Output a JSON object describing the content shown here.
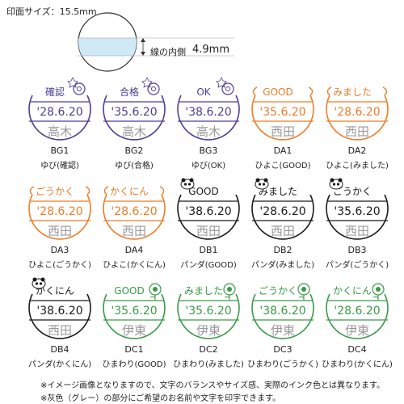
{
  "header": {
    "impression_size": "印面サイズ：15.5mm",
    "inner_label": "線の内側",
    "inner_value": "4.9mm"
  },
  "colors": {
    "purple": "#4a3f96",
    "orange": "#ef7c27",
    "black": "#1a1a1a",
    "green": "#3a9a48",
    "gray": "#9a9a9a",
    "light_blue": "#cfe9f5"
  },
  "items": [
    {
      "code": "BG1",
      "name": "ゆび(確認)",
      "top": "確認",
      "date": "'28.6.20",
      "bottom": "高木",
      "color": "purple",
      "icon": "finger-icon"
    },
    {
      "code": "BG2",
      "name": "ゆび(合格)",
      "top": "合格",
      "date": "'35.6.20",
      "bottom": "高木",
      "color": "purple",
      "icon": "finger-icon"
    },
    {
      "code": "BG3",
      "name": "ゆび(OK)",
      "top": "OK",
      "date": "'38.6.20",
      "bottom": "高木",
      "color": "purple",
      "icon": "finger-icon"
    },
    {
      "code": "DA1",
      "name": "ひよこ(GOOD)",
      "top": "GOOD",
      "date": "'35.6.20",
      "bottom": "西田",
      "color": "orange",
      "icon": "chick-icon"
    },
    {
      "code": "DA2",
      "name": "ひよこ(みました)",
      "top": "みました",
      "date": "'28.6.20",
      "bottom": "西田",
      "color": "orange",
      "icon": "chick-icon"
    },
    {
      "code": "DA3",
      "name": "ひよこ(ごうかく)",
      "top": "ごうかく",
      "date": "'28.6.20",
      "bottom": "西田",
      "color": "orange",
      "icon": "chick-icon"
    },
    {
      "code": "DA4",
      "name": "ひよこ(かくにん)",
      "top": "かくにん",
      "date": "'28.6.20",
      "bottom": "西田",
      "color": "orange",
      "icon": "chick-icon"
    },
    {
      "code": "DB1",
      "name": "パンダ(GOOD)",
      "top": "GOOD",
      "date": "'38.6.20",
      "bottom": "西田",
      "color": "black",
      "icon": "panda-icon"
    },
    {
      "code": "DB2",
      "name": "パンダ(みました)",
      "top": "みました",
      "date": "'28.6.20",
      "bottom": "西田",
      "color": "black",
      "icon": "panda-icon"
    },
    {
      "code": "DB3",
      "name": "パンダ(ごうかく)",
      "top": "ごうかく",
      "date": "'35.6.20",
      "bottom": "西田",
      "color": "black",
      "icon": "panda-icon"
    },
    {
      "code": "DB4",
      "name": "パンダ(かくにん)",
      "top": "かくにん",
      "date": "'38.6.20",
      "bottom": "西田",
      "color": "black",
      "icon": "panda-icon"
    },
    {
      "code": "DC1",
      "name": "ひまわり(GOOD)",
      "top": "GOOD",
      "date": "'35.6.20",
      "bottom": "伊東",
      "color": "green",
      "icon": "sunflower-icon"
    },
    {
      "code": "DC2",
      "name": "ひまわり(みました)",
      "top": "みました",
      "date": "'35.6.20",
      "bottom": "伊東",
      "color": "green",
      "icon": "sunflower-icon"
    },
    {
      "code": "DC3",
      "name": "ひまわり(ごうかく)",
      "top": "ごうかく",
      "date": "'38.6.20",
      "bottom": "伊東",
      "color": "green",
      "icon": "sunflower-icon"
    },
    {
      "code": "DC4",
      "name": "ひまわり(かくにん)",
      "top": "かくにん",
      "date": "'28.6.20",
      "bottom": "伊東",
      "color": "green",
      "icon": "sunflower-icon"
    }
  ],
  "notes": [
    "※イメージ画像となりますので、文字のバランスやサイズ感、実際のインク色とは異なります。",
    "※灰色（グレー）の部分にご希望のお名前や文字を印字できます。"
  ]
}
